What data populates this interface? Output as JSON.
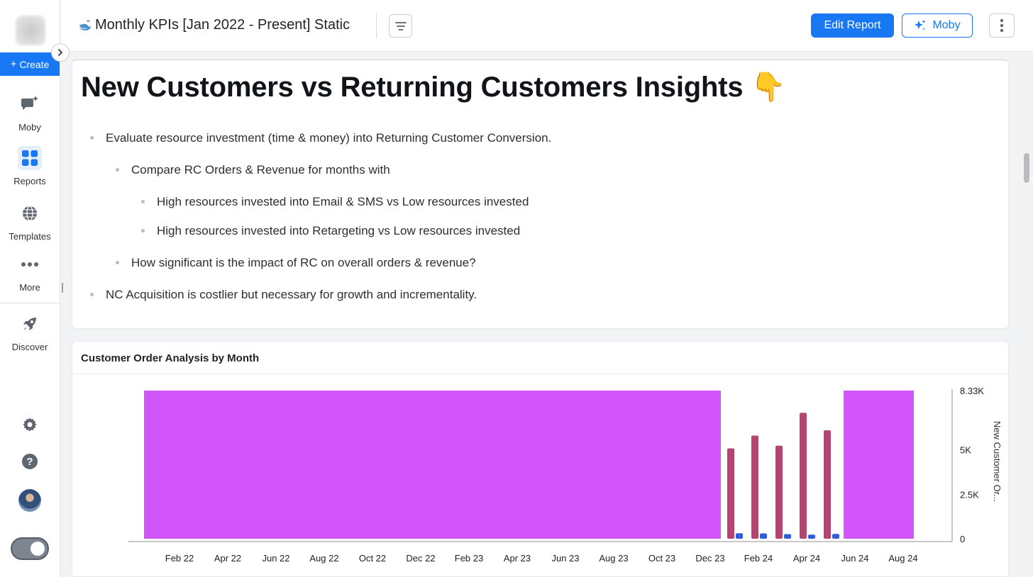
{
  "sidebar": {
    "create_label": "Create",
    "items": [
      {
        "label": "Moby",
        "icon": "chat-sparkle-icon"
      },
      {
        "label": "Reports",
        "icon": "grid-icon",
        "active": true
      },
      {
        "label": "Templates",
        "icon": "globe-icon"
      },
      {
        "label": "More",
        "icon": "ellipsis-icon"
      },
      {
        "label": "Discover",
        "icon": "rocket-icon"
      }
    ],
    "bottom_icons": [
      "gear-icon",
      "help-icon"
    ]
  },
  "topbar": {
    "title": "Monthly KPIs [Jan 2022 - Present] Static",
    "edit_label": "Edit Report",
    "moby_label": "Moby"
  },
  "insights": {
    "heading": "New Customers vs Returning Customers Insights 👇",
    "bullets": [
      {
        "level": 1,
        "text": "Evaluate resource investment (time & money) into Returning Customer Conversion."
      },
      {
        "level": 2,
        "text": "Compare RC Orders & Revenue for months with"
      },
      {
        "level": 3,
        "text": "High resources invested into Email & SMS vs Low resources invested"
      },
      {
        "level": 3,
        "text": "High resources invested into Retargeting vs Low resources invested"
      },
      {
        "level": 2,
        "text": "How significant is the impact of RC on overall orders & revenue?"
      },
      {
        "level": 1,
        "text": "NC Acquisition is costlier but necessary for growth and incrementality."
      }
    ]
  },
  "chart": {
    "title": "Customer Order Analysis by Month",
    "colors": {
      "area": "#d155f8",
      "bar_red": "#b5446e",
      "bar_blue": "#2f5de0"
    },
    "chart_data": {
      "type": "bar",
      "x_tick_labels": [
        "Feb 22",
        "Apr 22",
        "Jun 22",
        "Aug 22",
        "Oct 22",
        "Dec 22",
        "Feb 23",
        "Apr 23",
        "Jun 23",
        "Aug 23",
        "Oct 23",
        "Dec 23",
        "Feb 24",
        "Apr 24",
        "Jun 24",
        "Aug 24"
      ],
      "y_ticks": [
        "0",
        "2.5K",
        "5K",
        "8.33K"
      ],
      "y_tick_values": [
        0,
        2500,
        5000,
        8330
      ],
      "ylabel": "New Customer Or...",
      "ylim": [
        0,
        8330
      ],
      "highlight_bands": [
        {
          "from": "Jan 22",
          "to": "Dec 23",
          "value": 8330
        },
        {
          "from": "Jun 24",
          "to": "Aug 24",
          "value": 8330
        }
      ],
      "series": [
        {
          "color": "bar_red",
          "x": [
            "Jan 24",
            "Feb 24",
            "Mar 24",
            "Apr 24",
            "May 24"
          ],
          "values": [
            5080,
            5800,
            5230,
            7080,
            6100
          ]
        },
        {
          "color": "bar_blue",
          "x": [
            "Jan 24",
            "Feb 24",
            "Mar 24",
            "Apr 24",
            "May 24"
          ],
          "values": [
            310,
            300,
            260,
            230,
            270
          ]
        }
      ]
    }
  }
}
